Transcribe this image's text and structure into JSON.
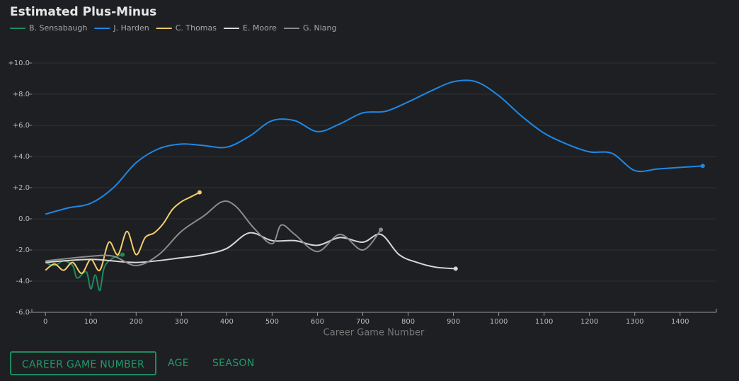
{
  "chart_data": {
    "type": "line",
    "title": "Estimated Plus-Minus",
    "x_label": "Career Game Number",
    "xlim": [
      -30,
      1480
    ],
    "xticks": [
      0,
      100,
      200,
      300,
      400,
      500,
      600,
      700,
      800,
      900,
      1000,
      1100,
      1200,
      1300,
      1400
    ],
    "ylim": [
      -6,
      11
    ],
    "yticks": [
      {
        "value": -6,
        "label": "-6.0"
      },
      {
        "value": -4,
        "label": "-4.0"
      },
      {
        "value": -2,
        "label": "-2.0"
      },
      {
        "value": 0,
        "label": "0.0"
      },
      {
        "value": 2,
        "label": "+2.0"
      },
      {
        "value": 4,
        "label": "+4.0"
      },
      {
        "value": 6,
        "label": "+6.0"
      },
      {
        "value": 8,
        "label": "+8.0"
      },
      {
        "value": 10,
        "label": "+10.0"
      }
    ],
    "grid": true,
    "series": [
      {
        "name": "B. Sensabaugh",
        "color": "#1e8a5c",
        "x": [
          0,
          20,
          40,
          60,
          70,
          90,
          100,
          110,
          120,
          130,
          150,
          170
        ],
        "values": [
          -2.8,
          -3.0,
          -2.7,
          -3.0,
          -3.8,
          -3.4,
          -4.5,
          -3.6,
          -4.6,
          -3.1,
          -2.5,
          -2.3
        ]
      },
      {
        "name": "J. Harden",
        "color": "#1e88e5",
        "x": [
          0,
          50,
          100,
          150,
          200,
          250,
          300,
          350,
          400,
          450,
          500,
          550,
          600,
          650,
          700,
          750,
          800,
          850,
          900,
          950,
          1000,
          1050,
          1100,
          1150,
          1200,
          1250,
          1300,
          1350,
          1400,
          1450
        ],
        "values": [
          0.3,
          0.7,
          1.0,
          2.0,
          3.6,
          4.5,
          4.8,
          4.7,
          4.6,
          5.3,
          6.3,
          6.3,
          5.6,
          6.1,
          6.8,
          6.9,
          7.5,
          8.2,
          8.8,
          8.8,
          7.9,
          6.6,
          5.5,
          4.8,
          4.3,
          4.2,
          3.1,
          3.2,
          3.3,
          3.4
        ]
      },
      {
        "name": "C. Thomas",
        "color": "#f2cd68",
        "x": [
          0,
          20,
          40,
          60,
          80,
          100,
          120,
          140,
          160,
          180,
          200,
          220,
          240,
          260,
          280,
          300,
          320,
          340
        ],
        "values": [
          -3.3,
          -2.9,
          -3.3,
          -2.8,
          -3.5,
          -2.6,
          -3.3,
          -1.5,
          -2.3,
          -0.8,
          -2.3,
          -1.2,
          -0.9,
          -0.3,
          0.6,
          1.1,
          1.4,
          1.7
        ]
      },
      {
        "name": "E. Moore",
        "color": "#d8d8d8",
        "x": [
          0,
          100,
          200,
          300,
          350,
          400,
          450,
          500,
          550,
          600,
          650,
          700,
          740,
          780,
          820,
          860,
          905
        ],
        "values": [
          -2.8,
          -2.6,
          -2.8,
          -2.5,
          -2.3,
          -1.9,
          -0.9,
          -1.4,
          -1.4,
          -1.7,
          -1.2,
          -1.5,
          -1.0,
          -2.3,
          -2.8,
          -3.1,
          -3.2
        ]
      },
      {
        "name": "G. Niang",
        "color": "#8c8c8c",
        "x": [
          0,
          100,
          150,
          200,
          250,
          300,
          350,
          390,
          420,
          460,
          500,
          520,
          550,
          600,
          650,
          700,
          740
        ],
        "values": [
          -2.7,
          -2.4,
          -2.4,
          -3.0,
          -2.3,
          -0.8,
          0.2,
          1.1,
          0.8,
          -0.6,
          -1.6,
          -0.4,
          -1.0,
          -2.1,
          -1.0,
          -2.0,
          -0.7
        ]
      }
    ]
  },
  "controls": {
    "buttons": [
      "CAREER GAME NUMBER",
      "AGE",
      "SEASON"
    ]
  }
}
